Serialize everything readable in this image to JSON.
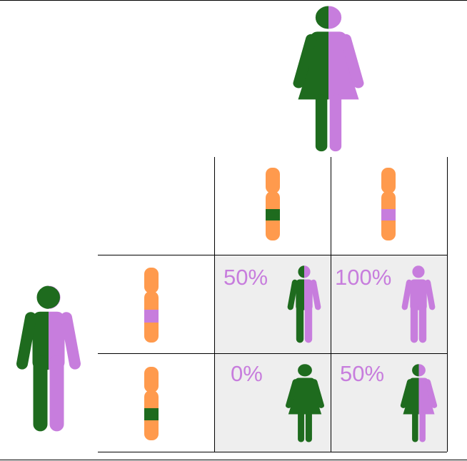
{
  "punnett": {
    "cells": [
      "50%",
      "100%",
      "0%",
      "50%"
    ]
  }
}
